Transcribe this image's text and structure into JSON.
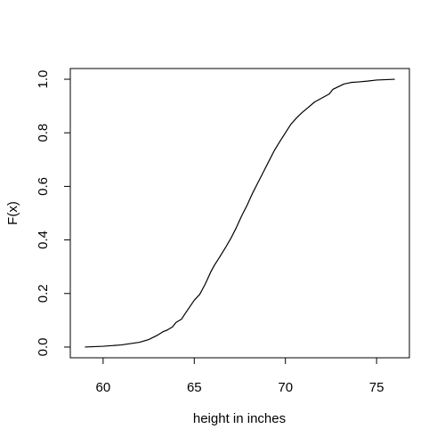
{
  "chart_data": {
    "type": "line",
    "title": "",
    "xlabel": "height in inches",
    "ylabel": "F(x)",
    "xlim": [
      58.2,
      76.8
    ],
    "ylim": [
      -0.04,
      1.04
    ],
    "x_ticks": [
      60,
      65,
      70,
      75
    ],
    "x_tick_labels": [
      "60",
      "65",
      "70",
      "75"
    ],
    "y_ticks": [
      0.0,
      0.2,
      0.4,
      0.6,
      0.8,
      1.0
    ],
    "y_tick_labels": [
      "0.0",
      "0.2",
      "0.4",
      "0.6",
      "0.8",
      "1.0"
    ],
    "grid": false,
    "series": [
      {
        "color": "#000000",
        "x": [
          59.0,
          60.0,
          61.0,
          61.5,
          62.0,
          62.5,
          63.0,
          63.3,
          63.5,
          63.8,
          64.0,
          64.3,
          64.5,
          64.8,
          65.0,
          65.3,
          65.6,
          65.9,
          66.1,
          66.4,
          66.7,
          67.0,
          67.3,
          67.6,
          67.9,
          68.2,
          68.5,
          68.8,
          69.1,
          69.4,
          69.7,
          70.0,
          70.3,
          70.6,
          70.9,
          71.2,
          71.6,
          72.0,
          72.4,
          72.6,
          72.9,
          73.2,
          73.6,
          74.0,
          74.5,
          75.0,
          76.0
        ],
        "y": [
          0.0,
          0.003,
          0.008,
          0.013,
          0.018,
          0.028,
          0.045,
          0.058,
          0.063,
          0.075,
          0.092,
          0.104,
          0.125,
          0.155,
          0.175,
          0.197,
          0.235,
          0.28,
          0.305,
          0.337,
          0.37,
          0.405,
          0.445,
          0.49,
          0.53,
          0.575,
          0.615,
          0.655,
          0.695,
          0.735,
          0.768,
          0.8,
          0.832,
          0.855,
          0.875,
          0.892,
          0.915,
          0.93,
          0.945,
          0.962,
          0.972,
          0.982,
          0.988,
          0.99,
          0.993,
          0.997,
          1.0
        ]
      }
    ]
  }
}
